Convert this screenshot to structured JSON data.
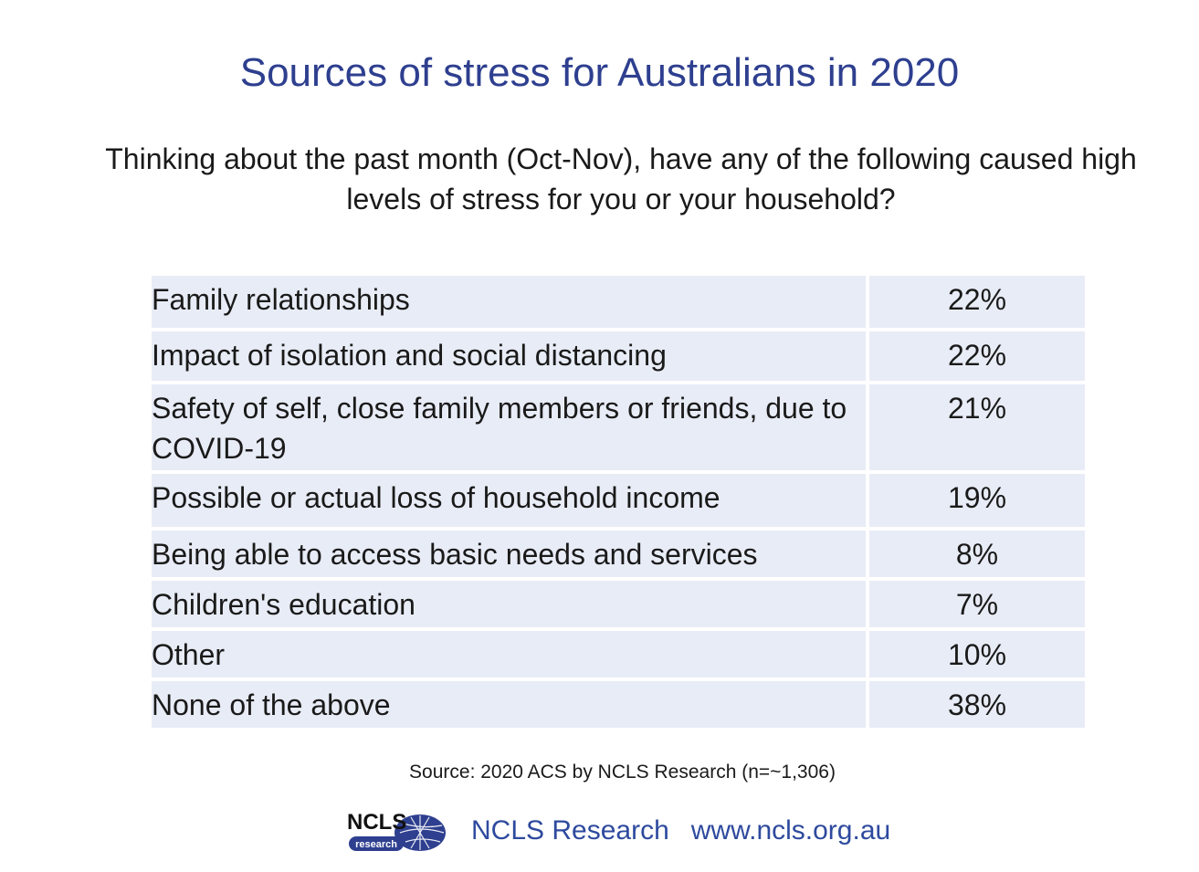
{
  "title": "Sources of stress for Australians in 2020",
  "question": "Thinking about the past month (Oct-Nov), have any of the following caused high levels of stress for you or your household?",
  "chart_data": {
    "type": "table",
    "title": "Sources of stress for Australians in 2020",
    "rows": [
      {
        "label": "Family relationships",
        "value": "22%"
      },
      {
        "label": "Impact of isolation and social distancing",
        "value": "22%"
      },
      {
        "label": "Safety of self, close family members or friends, due to COVID-19",
        "value": "21%"
      },
      {
        "label": "Possible or actual loss of household income",
        "value": "19%"
      },
      {
        "label": "Being able to access basic needs and services",
        "value": "8%"
      },
      {
        "label": "Children's education",
        "value": "7%"
      },
      {
        "label": "Other",
        "value": "10%"
      },
      {
        "label": "None of the above",
        "value": "38%"
      }
    ]
  },
  "source": "Source: 2020 ACS by NCLS Research (n=~1,306)",
  "footer": {
    "logo_text": "NCLS",
    "logo_subtext": "research",
    "org_name": "NCLS Research",
    "url": "www.ncls.org.au"
  },
  "colors": {
    "title": "#2e3f8f",
    "row_background": "#e8ecf6",
    "footer_text": "#2e4a9e"
  }
}
